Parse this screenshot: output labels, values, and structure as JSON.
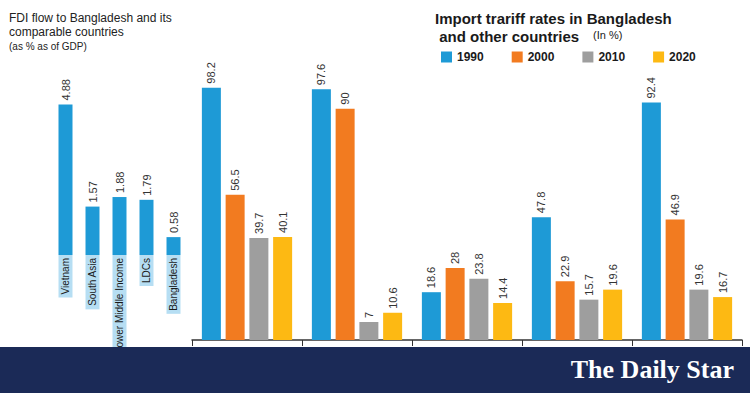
{
  "chart_data": [
    {
      "type": "bar",
      "title": "FDI flow to Bangladesh and its comparable countries",
      "subtitle": "(as % as of GDP)",
      "categories": [
        "Vietnam",
        "South Asia",
        "Lower Middle Income",
        "LDCs",
        "Bangladesh"
      ],
      "values": [
        4.88,
        1.57,
        1.88,
        1.79,
        0.58
      ],
      "color": "#1e9ad6",
      "ylim": [
        0,
        6
      ],
      "yticks": [
        0,
        6
      ],
      "grid": false,
      "data_labels": true,
      "tick_labels": "x"
    },
    {
      "type": "bar",
      "title": "Import trariff rates in Bangladesh and other countries",
      "subtitle": "(In %)",
      "categories": [
        null,
        null,
        null,
        null,
        null
      ],
      "series": [
        {
          "name": "1990",
          "color": "#1e9ad6",
          "values": [
            98.2,
            97.6,
            18.6,
            47.8,
            92.4
          ]
        },
        {
          "name": "2000",
          "color": "#f27b20",
          "values": [
            56.5,
            90,
            28,
            22.9,
            46.9
          ]
        },
        {
          "name": "2010",
          "color": "#9e9e9e",
          "values": [
            39.7,
            7,
            23.8,
            15.7,
            19.6
          ]
        },
        {
          "name": "2020",
          "color": "#fdb913",
          "values": [
            40.1,
            10.6,
            14.4,
            19.6,
            16.7
          ]
        }
      ],
      "ylim": [
        0,
        100
      ],
      "yticks": [
        0,
        100
      ],
      "grid": false,
      "legend": "top",
      "data_labels": true,
      "tick_labels": false
    }
  ],
  "footer": "The Daily Star"
}
